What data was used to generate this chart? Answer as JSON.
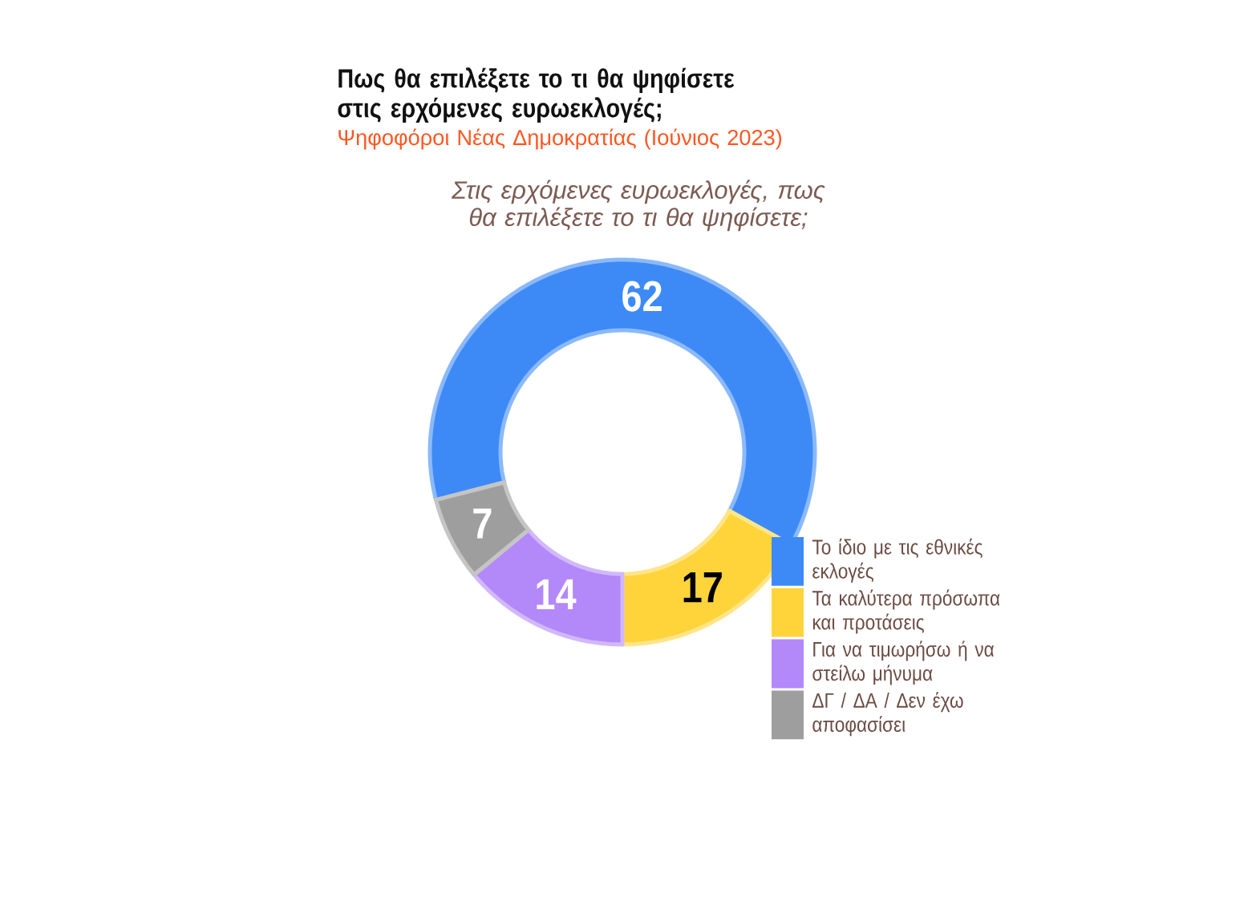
{
  "chart_data": {
    "type": "donut",
    "title": "Πως θα επιλέξετε το τι θα ψηφίσετε στις ερχόμενες ευρωεκλογές;",
    "subtitle": "Ψηφοφόροι Νέας Δημοκρατίας (Ιούνιος 2023)",
    "annotations": [
      "Στις ερχόμενες ευρωεκλογές, πως θα επιλέξετε το τι θα ψηφίσετε;"
    ],
    "categories": [
      "Το ίδιο με τις εθνικές εκλογές",
      "Τα καλύτερα πρόσωπα και προτάσεις",
      "Για να τιμωρήσω ή να στείλω μήνυμα",
      "ΔΓ / ΔΑ / Δεν έχω αποφασίσει"
    ],
    "values": [
      62,
      17,
      14,
      7
    ],
    "colors": [
      "#3d8af7",
      "#ffd43b",
      "#b388f9",
      "#9e9e9e"
    ],
    "data_labels": true,
    "legend": "bottom right"
  }
}
